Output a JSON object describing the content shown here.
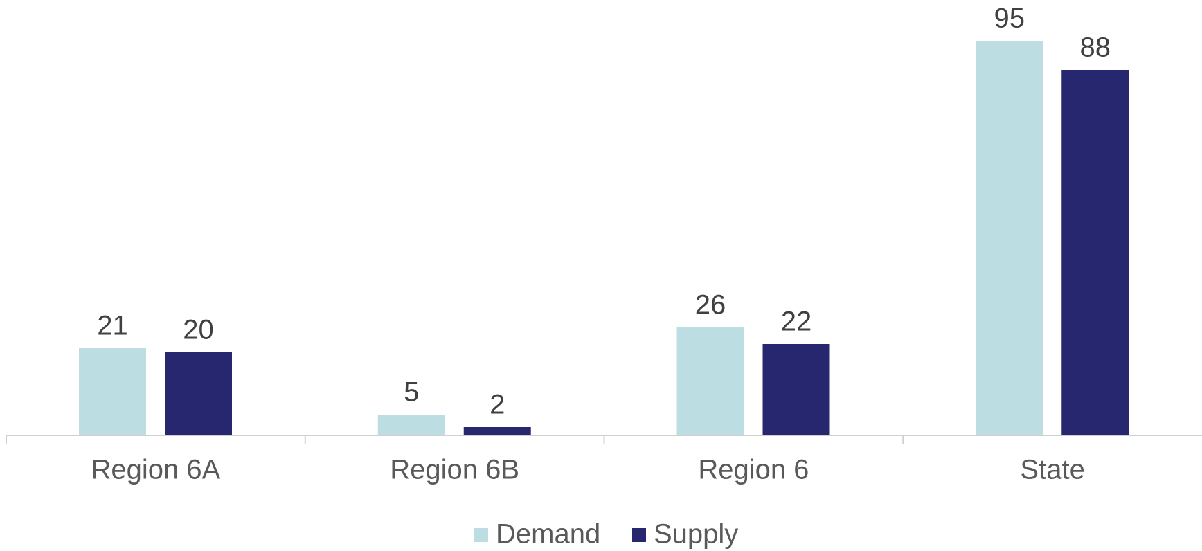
{
  "chart_data": {
    "type": "bar",
    "categories": [
      "Region 6A",
      "Region 6B",
      "Region 6",
      "State"
    ],
    "series": [
      {
        "name": "Demand",
        "color": "#bcdde2",
        "values": [
          21,
          5,
          26,
          95
        ]
      },
      {
        "name": "Supply",
        "color": "#272770",
        "values": [
          20,
          2,
          22,
          88
        ]
      }
    ],
    "ylim": [
      0,
      100
    ],
    "grid": false,
    "legend": "bottom"
  }
}
